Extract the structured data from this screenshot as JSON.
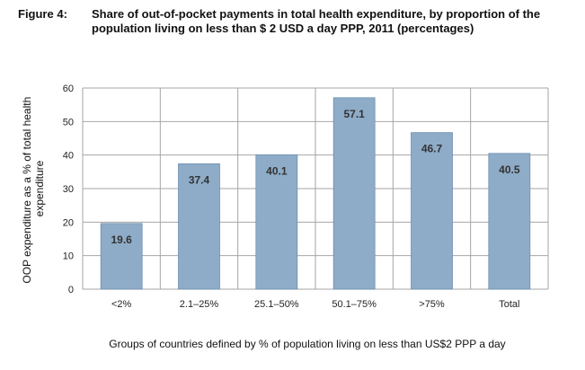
{
  "figure": {
    "label": "Figure 4:",
    "title": "Share of out-of-pocket payments in total health expenditure, by proportion of the population living on less than $ 2 USD a day PPP, 2011 (percentages)"
  },
  "chart_data": {
    "type": "bar",
    "categories": [
      "<2%",
      "2.1–25%",
      "25.1–50%",
      "50.1–75%",
      ">75%",
      "Total"
    ],
    "values": [
      19.6,
      37.4,
      40.1,
      57.1,
      46.7,
      40.5
    ],
    "data_labels": [
      "19.6",
      "37.4",
      "40.1",
      "57.1",
      "46.7",
      "40.5"
    ],
    "xlabel": "Groups of countries defined by % of population living on less than US$2 PPP a day",
    "ylabel_lines": [
      "OOP expenditure as a % of total health",
      "expenditure"
    ],
    "ylim": [
      0,
      60
    ],
    "yticks": [
      0,
      10,
      20,
      30,
      40,
      50,
      60
    ],
    "grid": true,
    "bar_color": "#8eacc8",
    "bar_stroke": "#6f90b0",
    "grid_color": "#a6a6a6"
  }
}
